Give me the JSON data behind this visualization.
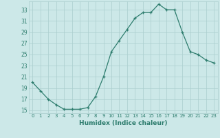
{
  "x": [
    0,
    1,
    2,
    3,
    4,
    5,
    6,
    7,
    8,
    9,
    10,
    11,
    12,
    13,
    14,
    15,
    16,
    17,
    18,
    19,
    20,
    21,
    22,
    23
  ],
  "y": [
    20,
    18.5,
    17,
    16,
    15.2,
    15.2,
    15.2,
    15.5,
    17.5,
    21,
    25.5,
    27.5,
    29.5,
    31.5,
    32.5,
    32.5,
    34,
    33,
    33,
    29,
    25.5,
    25,
    24,
    23.5
  ],
  "xlabel": "Humidex (Indice chaleur)",
  "xlim": [
    -0.5,
    23.5
  ],
  "ylim": [
    14.5,
    34.5
  ],
  "yticks": [
    15,
    17,
    19,
    21,
    23,
    25,
    27,
    29,
    31,
    33
  ],
  "xticks": [
    0,
    1,
    2,
    3,
    4,
    5,
    6,
    7,
    8,
    9,
    10,
    11,
    12,
    13,
    14,
    15,
    16,
    17,
    18,
    19,
    20,
    21,
    22,
    23
  ],
  "line_color": "#2e7d6e",
  "bg_color": "#cce8e8",
  "grid_color": "#aacece",
  "marker": "+",
  "marker_size": 3.5,
  "linewidth": 0.9
}
